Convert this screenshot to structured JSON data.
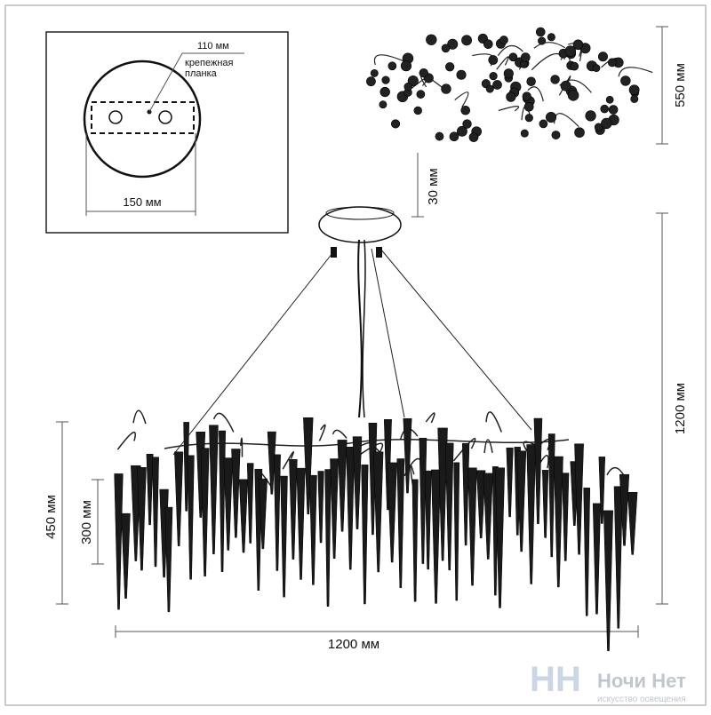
{
  "inset": {
    "mount_dim": "110 мм",
    "mount_label_1": "крепежная",
    "mount_label_2": "планка",
    "width_dim": "150 мм"
  },
  "dimensions": {
    "top_view_height": "550 мм",
    "canopy_height": "30 мм",
    "total_height": "1200 мм",
    "body_height": "450 мм",
    "crystal_height": "300 мм",
    "width": "1200 мм"
  },
  "logo": {
    "name": "Ночи Нет",
    "tagline": "искусство освещения"
  }
}
